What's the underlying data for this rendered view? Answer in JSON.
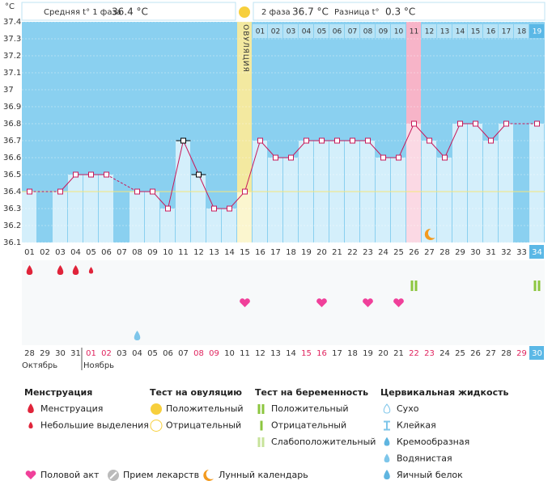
{
  "header": {
    "phase1_label": "Средняя t° 1 фаза",
    "phase1_value": "36.4 °C",
    "phase2_label": "2 фаза",
    "phase2_value": "36.7 °C",
    "diff_label": "Разница t°",
    "diff_value": "0.3 °C"
  },
  "chart_data": {
    "type": "line",
    "y_unit": "°C",
    "ovulation_label": "ОВУЛЯЦИЯ",
    "ylim": [
      36.1,
      37.4
    ],
    "yticks": [
      36.1,
      36.2,
      36.3,
      36.4,
      36.5,
      36.6,
      36.7,
      36.8,
      36.9,
      37,
      37.1,
      37.2,
      37.3,
      37.4
    ],
    "cover_line": 36.4,
    "color": "#c8195a",
    "ovulation_day": 14,
    "highlight_day": 25,
    "cycle_days": [
      "01",
      "02",
      "03",
      "04",
      "05",
      "06",
      "07",
      "08",
      "09",
      "10",
      "11",
      "12",
      "13",
      "14",
      "15",
      "16",
      "17",
      "18",
      "19",
      "20",
      "21",
      "22",
      "23",
      "24",
      "25",
      "26",
      "27",
      "28",
      "29",
      "30",
      "31",
      "32",
      "33",
      "34"
    ],
    "phase2_days": [
      "01",
      "02",
      "03",
      "04",
      "05",
      "06",
      "07",
      "08",
      "09",
      "10",
      "11",
      "12",
      "13",
      "14",
      "15",
      "16",
      "17",
      "18",
      "19"
    ],
    "values": [
      36.4,
      null,
      36.4,
      36.5,
      36.5,
      36.5,
      null,
      36.4,
      36.4,
      36.3,
      36.7,
      36.5,
      36.3,
      36.3,
      36.4,
      36.7,
      36.6,
      36.6,
      36.7,
      36.7,
      36.7,
      36.7,
      36.7,
      36.6,
      36.6,
      36.8,
      36.7,
      36.6,
      36.8,
      36.8,
      36.7,
      36.8,
      null,
      36.8
    ],
    "excluded": [
      10,
      11
    ],
    "dates": [
      "28",
      "29",
      "30",
      "31",
      "01",
      "02",
      "03",
      "04",
      "05",
      "06",
      "07",
      "08",
      "09",
      "10",
      "11",
      "12",
      "13",
      "14",
      "15",
      "16",
      "17",
      "18",
      "19",
      "20",
      "21",
      "22",
      "23",
      "24",
      "25",
      "26",
      "27",
      "28",
      "29",
      "30"
    ],
    "weekend": [
      4,
      5,
      11,
      12,
      18,
      19,
      25,
      26,
      32
    ],
    "months": [
      {
        "label": "Октябрь",
        "start": 0
      },
      {
        "label": "Ноябрь",
        "start": 4
      }
    ],
    "events": {
      "menstruation": [
        0,
        2,
        3
      ],
      "spotting": [
        4
      ],
      "pregnancy_positive": [
        25,
        33
      ],
      "intercourse": [
        14,
        19,
        22,
        24
      ],
      "cervical_watery": [
        7
      ],
      "lunar": [
        26
      ]
    }
  },
  "legend": {
    "menstruation": {
      "title": "Менструация",
      "items": [
        "Менструация",
        "Небольшие выделения"
      ]
    },
    "ovulation_test": {
      "title": "Тест на овуляцию",
      "items": [
        "Положительный",
        "Отрицательный"
      ]
    },
    "pregnancy_test": {
      "title": "Тест на беременность",
      "items": [
        "Положительный",
        "Отрицательный",
        "Слабоположительный"
      ]
    },
    "cervical": {
      "title": "Цервикальная жидкость",
      "items": [
        "Сухо",
        "Клейкая",
        "Кремообразная",
        "Водянистая",
        "Яичный белок"
      ]
    },
    "other": [
      "Половой акт",
      "Прием лекарств",
      "Лунный календарь"
    ]
  }
}
